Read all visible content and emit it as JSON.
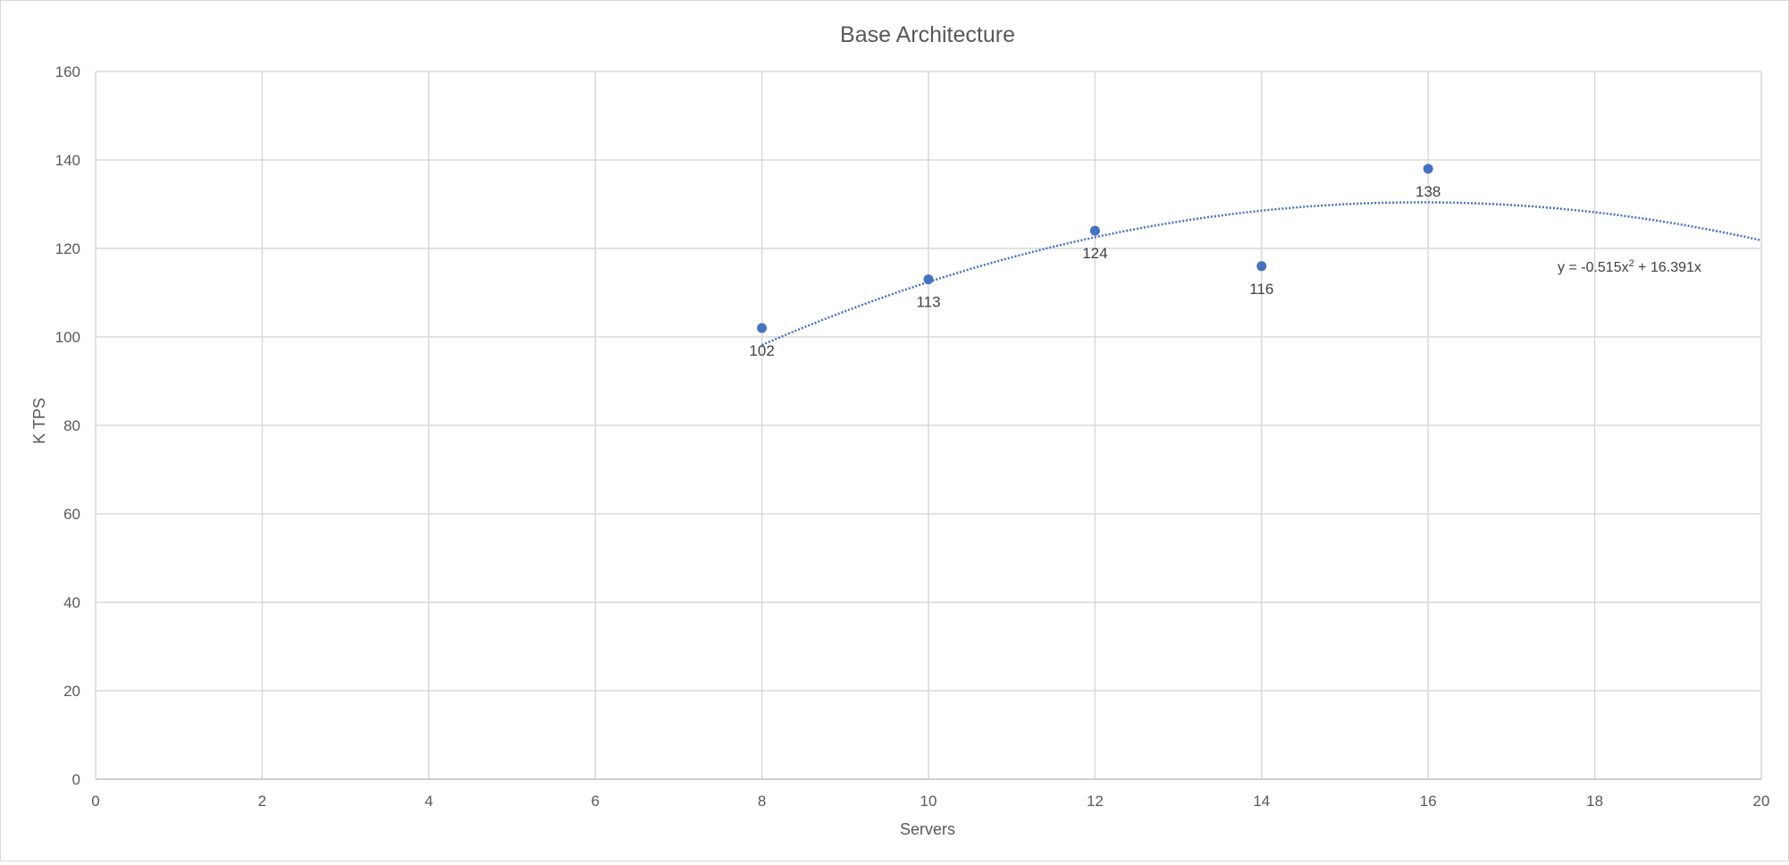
{
  "chart_data": {
    "type": "scatter",
    "title": "Base Architecture",
    "xlabel": "Servers",
    "ylabel": "K TPS",
    "xlim": [
      0,
      20
    ],
    "ylim": [
      0,
      160
    ],
    "xticks": [
      0,
      2,
      4,
      6,
      8,
      10,
      12,
      14,
      16,
      18,
      20
    ],
    "yticks": [
      0,
      20,
      40,
      60,
      80,
      100,
      120,
      140,
      160
    ],
    "grid": true,
    "legend": "none",
    "points": [
      {
        "x": 8,
        "y": 102,
        "label": "102"
      },
      {
        "x": 10,
        "y": 113,
        "label": "113"
      },
      {
        "x": 12,
        "y": 124,
        "label": "124"
      },
      {
        "x": 14,
        "y": 116,
        "label": "116"
      },
      {
        "x": 16,
        "y": 138,
        "label": "138"
      }
    ],
    "trendline": {
      "type": "polynomial",
      "a": -0.515,
      "b": 16.391,
      "x_range": [
        8,
        20
      ],
      "equation_prefix": "y = -0.515x",
      "equation_sup": "2",
      "equation_suffix": " + 16.391x"
    },
    "colors": {
      "marker": "#4472c4",
      "trendline": "#4472c4",
      "grid": "#d9d9d9",
      "text": "#595959",
      "label": "#404040"
    }
  }
}
